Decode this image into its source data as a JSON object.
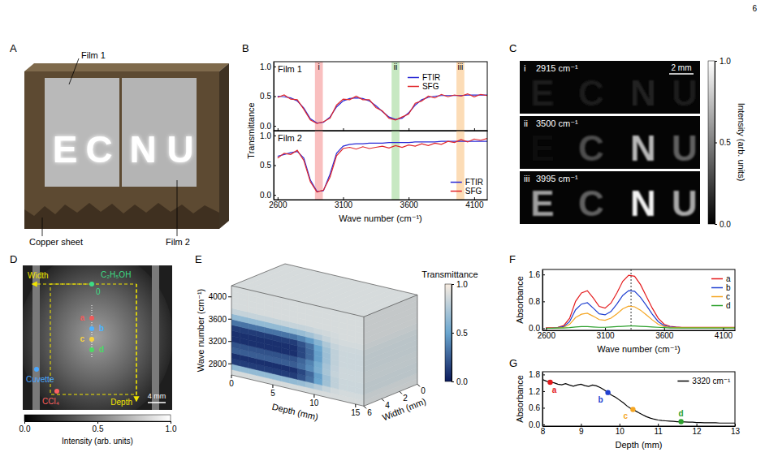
{
  "page_number": "6",
  "panel_letters": [
    "A",
    "B",
    "C",
    "D",
    "E",
    "F",
    "G"
  ],
  "panel_a": {
    "film_1": "Film 1",
    "film_2": "Film 2",
    "copper": "Copper sheet",
    "letters": [
      "E",
      "C",
      "N",
      "U"
    ]
  },
  "chart_data": [
    {
      "type": "line",
      "title": "Film 1",
      "ylabel": "Transmittance",
      "x": [
        2600,
        2650,
        2700,
        2750,
        2800,
        2850,
        2900,
        2950,
        3000,
        3050,
        3100,
        3150,
        3200,
        3250,
        3300,
        3350,
        3400,
        3450,
        3500,
        3550,
        3600,
        3650,
        3700,
        3750,
        3800,
        3850,
        3900,
        3950,
        4000,
        4050,
        4100,
        4150,
        4200
      ],
      "series": [
        {
          "name": "FTIR",
          "color": "#2b2bd6",
          "values": [
            0.5,
            0.49,
            0.47,
            0.42,
            0.3,
            0.12,
            0.05,
            0.06,
            0.15,
            0.32,
            0.42,
            0.46,
            0.47,
            0.46,
            0.42,
            0.34,
            0.24,
            0.15,
            0.11,
            0.13,
            0.22,
            0.35,
            0.44,
            0.48,
            0.5,
            0.51,
            0.51,
            0.51,
            0.51,
            0.52,
            0.52,
            0.52,
            0.52
          ]
        },
        {
          "name": "SFG",
          "color": "#e0262b",
          "values": [
            0.48,
            0.52,
            0.45,
            0.44,
            0.28,
            0.1,
            0.04,
            0.07,
            0.13,
            0.35,
            0.45,
            0.44,
            0.5,
            0.44,
            0.44,
            0.31,
            0.25,
            0.13,
            0.1,
            0.15,
            0.2,
            0.38,
            0.42,
            0.5,
            0.47,
            0.53,
            0.49,
            0.52,
            0.5,
            0.54,
            0.49,
            0.53,
            0.51
          ]
        }
      ],
      "xlim": [
        2570,
        4200
      ],
      "xticks": [
        2600,
        3100,
        3600,
        4100
      ],
      "ylim": [
        -0.08,
        1.08
      ],
      "yticks": [
        {
          "value": 0,
          "label": "0.0"
        },
        {
          "value": 0.5,
          "label": "0.5"
        },
        {
          "value": 1,
          "label": "1.0"
        }
      ],
      "tick_labels": "y",
      "legend": "upper right",
      "bands": [
        {
          "label": "i",
          "from": 2885,
          "to": 2945,
          "color": "#f7a9a9"
        },
        {
          "label": "ii",
          "from": 3470,
          "to": 3530,
          "color": "#b4e0ae"
        },
        {
          "label": "iii",
          "from": 3965,
          "to": 4025,
          "color": "#fbd09d"
        }
      ]
    },
    {
      "type": "line",
      "title": "Film 2",
      "xlabel": "Wave number (cm⁻¹)",
      "x": [
        2600,
        2650,
        2700,
        2750,
        2800,
        2850,
        2900,
        2950,
        3000,
        3050,
        3100,
        3150,
        3200,
        3250,
        3300,
        3350,
        3400,
        3450,
        3500,
        3550,
        3600,
        3650,
        3700,
        3750,
        3800,
        3850,
        3900,
        3950,
        4000,
        4050,
        4100,
        4150,
        4200
      ],
      "series": [
        {
          "name": "FTIR",
          "color": "#2b2bd6",
          "values": [
            0.65,
            0.68,
            0.71,
            0.73,
            0.62,
            0.25,
            0.06,
            0.07,
            0.35,
            0.7,
            0.82,
            0.85,
            0.86,
            0.86,
            0.87,
            0.87,
            0.87,
            0.88,
            0.88,
            0.88,
            0.88,
            0.89,
            0.89,
            0.89,
            0.89,
            0.9,
            0.9,
            0.9,
            0.9,
            0.9,
            0.9,
            0.9,
            0.9
          ]
        },
        {
          "name": "SFG",
          "color": "#e0262b",
          "values": [
            0.62,
            0.7,
            0.68,
            0.75,
            0.58,
            0.22,
            0.05,
            0.08,
            0.3,
            0.66,
            0.78,
            0.8,
            0.77,
            0.81,
            0.78,
            0.8,
            0.82,
            0.79,
            0.83,
            0.8,
            0.84,
            0.82,
            0.86,
            0.83,
            0.87,
            0.85,
            0.9,
            0.88,
            0.93,
            0.89,
            0.94,
            0.92,
            0.95
          ]
        }
      ],
      "xlim": [
        2570,
        4200
      ],
      "xticks": [
        2600,
        3100,
        3600,
        4100
      ],
      "ylim": [
        -0.08,
        1.08
      ],
      "yticks": [
        {
          "value": 0,
          "label": "0.0"
        },
        {
          "value": 0.5,
          "label": "0.5"
        },
        {
          "value": 1,
          "label": "1.0"
        }
      ],
      "legend": "lower right",
      "bands": [
        {
          "from": 2885,
          "to": 2945,
          "color": "#f7a9a9"
        },
        {
          "from": 3470,
          "to": 3530,
          "color": "#b4e0ae"
        },
        {
          "from": 3965,
          "to": 4025,
          "color": "#fbd09d"
        }
      ]
    },
    {
      "type": "line",
      "xlabel": "Wave number (cm⁻¹)",
      "ylabel": "Absorbance",
      "x": [
        2600,
        2650,
        2700,
        2750,
        2800,
        2850,
        2900,
        2950,
        3000,
        3050,
        3100,
        3150,
        3200,
        3250,
        3300,
        3350,
        3400,
        3450,
        3500,
        3550,
        3600,
        3650,
        3700,
        3750,
        3800,
        3850,
        3900,
        3950,
        4000,
        4050,
        4100,
        4150,
        4200
      ],
      "series": [
        {
          "name": "a",
          "color": "#e41a1c",
          "values": [
            0.02,
            0.02,
            0.03,
            0.08,
            0.3,
            0.8,
            1.05,
            1.12,
            0.9,
            0.65,
            0.6,
            0.75,
            1.05,
            1.4,
            1.58,
            1.55,
            1.3,
            0.95,
            0.6,
            0.3,
            0.12,
            0.06,
            0.04,
            0.03,
            0.03,
            0.03,
            0.03,
            0.03,
            0.03,
            0.03,
            0.03,
            0.03,
            0.03
          ]
        },
        {
          "name": "b",
          "color": "#2040d0",
          "values": [
            0.01,
            0.01,
            0.02,
            0.05,
            0.2,
            0.55,
            0.72,
            0.76,
            0.6,
            0.43,
            0.4,
            0.5,
            0.72,
            0.98,
            1.12,
            1.1,
            0.92,
            0.68,
            0.42,
            0.2,
            0.08,
            0.04,
            0.03,
            0.02,
            0.02,
            0.02,
            0.02,
            0.02,
            0.02,
            0.02,
            0.02,
            0.02,
            0.02
          ]
        },
        {
          "name": "c",
          "color": "#f5a623",
          "values": [
            0.01,
            0.01,
            0.01,
            0.03,
            0.12,
            0.32,
            0.42,
            0.45,
            0.36,
            0.26,
            0.24,
            0.3,
            0.43,
            0.58,
            0.66,
            0.64,
            0.54,
            0.4,
            0.25,
            0.12,
            0.05,
            0.03,
            0.02,
            0.02,
            0.02,
            0.02,
            0.02,
            0.02,
            0.02,
            0.02,
            0.02,
            0.02,
            0.02
          ]
        },
        {
          "name": "d",
          "color": "#2ca02c",
          "values": [
            0.0,
            0.0,
            0.01,
            0.01,
            0.02,
            0.04,
            0.05,
            0.05,
            0.04,
            0.03,
            0.03,
            0.04,
            0.05,
            0.06,
            0.07,
            0.07,
            0.06,
            0.05,
            0.04,
            0.03,
            0.02,
            0.01,
            0.01,
            0.01,
            0.01,
            0.01,
            0.01,
            0.01,
            0.01,
            0.01,
            0.01,
            0.01,
            0.01
          ]
        }
      ],
      "xlim": [
        2570,
        4200
      ],
      "xticks": [
        2600,
        3100,
        3600,
        4100
      ],
      "ylim": [
        -0.06,
        1.75
      ],
      "yticks": [
        {
          "value": 0,
          "label": "0.0"
        },
        {
          "value": 0.8,
          "label": "0.8"
        },
        {
          "value": 1.6,
          "label": "1.6"
        }
      ],
      "legend": "upper right",
      "reference_line": 3320
    },
    {
      "type": "line",
      "xlabel": "Depth (mm)",
      "ylabel": "Absorbance",
      "x": [
        8.0,
        8.1,
        8.2,
        8.3,
        8.4,
        8.5,
        8.6,
        8.7,
        8.8,
        8.9,
        9.0,
        9.1,
        9.2,
        9.3,
        9.4,
        9.5,
        9.6,
        9.7,
        9.8,
        9.9,
        10.0,
        10.1,
        10.2,
        10.3,
        10.4,
        10.5,
        10.6,
        10.7,
        10.8,
        10.9,
        11.0,
        11.1,
        11.2,
        11.3,
        11.4,
        11.5,
        11.6,
        11.7,
        11.8,
        11.9,
        12.0,
        12.1,
        12.2,
        12.3,
        12.4,
        12.5,
        12.6,
        12.7,
        12.8,
        12.9,
        13.0
      ],
      "series": [
        {
          "name": "3320 cm⁻¹",
          "color": "#000000",
          "values": [
            1.62,
            1.56,
            1.52,
            1.5,
            1.45,
            1.43,
            1.47,
            1.42,
            1.38,
            1.42,
            1.45,
            1.4,
            1.37,
            1.42,
            1.39,
            1.33,
            1.25,
            1.15,
            1.05,
            0.98,
            0.88,
            0.78,
            0.66,
            0.57,
            0.5,
            0.42,
            0.35,
            0.28,
            0.23,
            0.19,
            0.16,
            0.14,
            0.13,
            0.12,
            0.11,
            0.1,
            0.1,
            0.09,
            0.08,
            0.08,
            0.07,
            0.07,
            0.06,
            0.06,
            0.06,
            0.06,
            0.05,
            0.05,
            0.05,
            0.05,
            0.05
          ]
        }
      ],
      "points": [
        {
          "label": "a",
          "x": 8.2,
          "y": 1.52,
          "color": "#e41a1c"
        },
        {
          "label": "b",
          "x": 9.7,
          "y": 1.15,
          "color": "#2040d0"
        },
        {
          "label": "c",
          "x": 10.35,
          "y": 0.54,
          "color": "#f5a623"
        },
        {
          "label": "d",
          "x": 11.6,
          "y": 0.1,
          "color": "#2ca02c"
        }
      ],
      "xlim": [
        8,
        13
      ],
      "xticks": [
        8,
        9,
        10,
        11,
        12,
        13
      ],
      "ylim": [
        -0.06,
        1.9
      ],
      "yticks": [
        {
          "value": 0,
          "label": "0.0"
        },
        {
          "value": 0.6,
          "label": "0.6"
        },
        {
          "value": 1.2,
          "label": "1.2"
        },
        {
          "value": 1.8,
          "label": "1.8"
        }
      ],
      "legend": "upper right"
    }
  ],
  "panel_c": {
    "letters": [
      "E",
      "C",
      "N",
      "U"
    ],
    "images": [
      {
        "label": "i",
        "wavenumber": "2915 cm⁻¹",
        "letter_intensity": [
          0.1,
          0.12,
          0.14,
          0.11
        ]
      },
      {
        "label": "ii",
        "wavenumber": "3500 cm⁻¹",
        "letter_intensity": [
          0.05,
          0.3,
          0.72,
          0.38
        ]
      },
      {
        "label": "iii",
        "wavenumber": "3995 cm⁻¹",
        "letter_intensity": [
          0.62,
          0.38,
          0.95,
          0.66
        ]
      }
    ],
    "scale_bar": "2 mm",
    "colorbar": {
      "label": "Intensity (arb. units)",
      "range": [
        0,
        1
      ],
      "ticks": [
        {
          "value": 0,
          "label": "0.0"
        },
        {
          "value": 0.5,
          "label": "0.5"
        },
        {
          "value": 1,
          "label": "1.0"
        }
      ]
    }
  },
  "panel_d": {
    "width": {
      "text": "Width",
      "color": "#f2e600"
    },
    "depth": {
      "text": "Depth",
      "color": "#f2e600"
    },
    "ethanol": {
      "text": "C₂H₅OH",
      "color": "#3ddc84"
    },
    "origin": {
      "text": "0",
      "color": "#3ddc84"
    },
    "cuvette": {
      "text": "Cuvette",
      "color": "#4aa8ff"
    },
    "ccl4": {
      "text": "CCl₄",
      "color": "#ff6060"
    },
    "scale_bar": "4 mm",
    "points": [
      {
        "label": "a",
        "color": "#f05a5a"
      },
      {
        "label": "b",
        "color": "#4fb3ff"
      },
      {
        "label": "c",
        "color": "#f7d23e"
      },
      {
        "label": "d",
        "color": "#4cd964"
      }
    ],
    "colorbar": {
      "label": "Intensity (arb. units)",
      "range": [
        0,
        1
      ],
      "ticks": [
        {
          "value": 0,
          "label": "0.0"
        },
        {
          "value": 0.5,
          "label": "0.5"
        },
        {
          "value": 1,
          "label": "1.0"
        }
      ]
    }
  },
  "panel_e": {
    "wavenumber_label": "Wave number (cm⁻¹)",
    "depth_label": "Depth (mm)",
    "width_label": "Width (mm)",
    "wavenumber_lim": [
      2600,
      4200
    ],
    "wavenumber_ticks": [
      2800,
      3200,
      3600,
      4000
    ],
    "depth_lim": [
      0,
      16
    ],
    "depth_ticks": [
      0,
      5,
      10,
      15
    ],
    "width_lim": [
      0,
      6
    ],
    "width_ticks": [
      0,
      2,
      4,
      6
    ],
    "depth_edges": [
      0,
      1,
      2,
      3,
      4,
      5,
      6,
      7,
      8,
      9,
      10,
      11,
      12,
      13,
      14,
      15,
      16
    ],
    "wavenumber_edges": [
      2600,
      2700,
      2800,
      2900,
      3000,
      3100,
      3200,
      3300,
      3400,
      3500,
      3600,
      3700,
      3800,
      3900,
      4000,
      4100,
      4200
    ],
    "values": [
      [
        0.88,
        0.88,
        0.88,
        0.88,
        0.88,
        0.88,
        0.88,
        0.88,
        0.88,
        0.88,
        0.88,
        0.88,
        0.88,
        0.88,
        0.88,
        0.88
      ],
      [
        0.64,
        0.64,
        0.64,
        0.64,
        0.64,
        0.64,
        0.64,
        0.64,
        0.66,
        0.7,
        0.76,
        0.82,
        0.86,
        0.87,
        0.87,
        0.87
      ],
      [
        0.12,
        0.12,
        0.12,
        0.12,
        0.12,
        0.12,
        0.12,
        0.12,
        0.2,
        0.31,
        0.5,
        0.69,
        0.8,
        0.84,
        0.84,
        0.84
      ],
      [
        0.08,
        0.08,
        0.08,
        0.08,
        0.08,
        0.08,
        0.08,
        0.08,
        0.16,
        0.28,
        0.48,
        0.68,
        0.8,
        0.84,
        0.84,
        0.84
      ],
      [
        0.24,
        0.24,
        0.24,
        0.24,
        0.24,
        0.24,
        0.24,
        0.24,
        0.3,
        0.4,
        0.56,
        0.72,
        0.82,
        0.85,
        0.85,
        0.85
      ],
      [
        0.2,
        0.2,
        0.2,
        0.2,
        0.2,
        0.2,
        0.2,
        0.2,
        0.27,
        0.37,
        0.54,
        0.71,
        0.81,
        0.85,
        0.85,
        0.85
      ],
      [
        0.08,
        0.08,
        0.08,
        0.08,
        0.08,
        0.08,
        0.08,
        0.08,
        0.16,
        0.28,
        0.48,
        0.68,
        0.8,
        0.84,
        0.84,
        0.84
      ],
      [
        0.08,
        0.08,
        0.08,
        0.08,
        0.08,
        0.08,
        0.08,
        0.08,
        0.16,
        0.28,
        0.48,
        0.68,
        0.8,
        0.84,
        0.84,
        0.84
      ],
      [
        0.12,
        0.12,
        0.12,
        0.12,
        0.12,
        0.12,
        0.12,
        0.12,
        0.2,
        0.31,
        0.5,
        0.69,
        0.8,
        0.84,
        0.84,
        0.84
      ],
      [
        0.32,
        0.32,
        0.32,
        0.32,
        0.32,
        0.32,
        0.32,
        0.32,
        0.38,
        0.46,
        0.6,
        0.74,
        0.82,
        0.85,
        0.85,
        0.85
      ],
      [
        0.64,
        0.64,
        0.64,
        0.64,
        0.64,
        0.64,
        0.64,
        0.64,
        0.66,
        0.7,
        0.76,
        0.82,
        0.86,
        0.87,
        0.87,
        0.87
      ],
      [
        0.82,
        0.82,
        0.82,
        0.82,
        0.82,
        0.82,
        0.82,
        0.82,
        0.82,
        0.83,
        0.85,
        0.86,
        0.87,
        0.88,
        0.88,
        0.88
      ],
      [
        0.88,
        0.88,
        0.88,
        0.88,
        0.88,
        0.88,
        0.88,
        0.88,
        0.88,
        0.88,
        0.88,
        0.88,
        0.88,
        0.88,
        0.88,
        0.88
      ],
      [
        0.88,
        0.88,
        0.88,
        0.88,
        0.88,
        0.88,
        0.88,
        0.88,
        0.88,
        0.88,
        0.88,
        0.88,
        0.88,
        0.88,
        0.88,
        0.88
      ],
      [
        0.88,
        0.88,
        0.88,
        0.88,
        0.88,
        0.88,
        0.88,
        0.88,
        0.88,
        0.88,
        0.88,
        0.88,
        0.88,
        0.88,
        0.88,
        0.88
      ],
      [
        0.88,
        0.88,
        0.88,
        0.88,
        0.88,
        0.88,
        0.88,
        0.88,
        0.88,
        0.88,
        0.88,
        0.88,
        0.88,
        0.88,
        0.88,
        0.88
      ]
    ],
    "colorbar": {
      "label": "Transmittance",
      "range": [
        0,
        1
      ],
      "ticks": [
        {
          "value": 0,
          "label": "0.0"
        },
        {
          "value": 0.5,
          "label": "0.5"
        },
        {
          "value": 1,
          "label": "1.0"
        }
      ]
    }
  }
}
